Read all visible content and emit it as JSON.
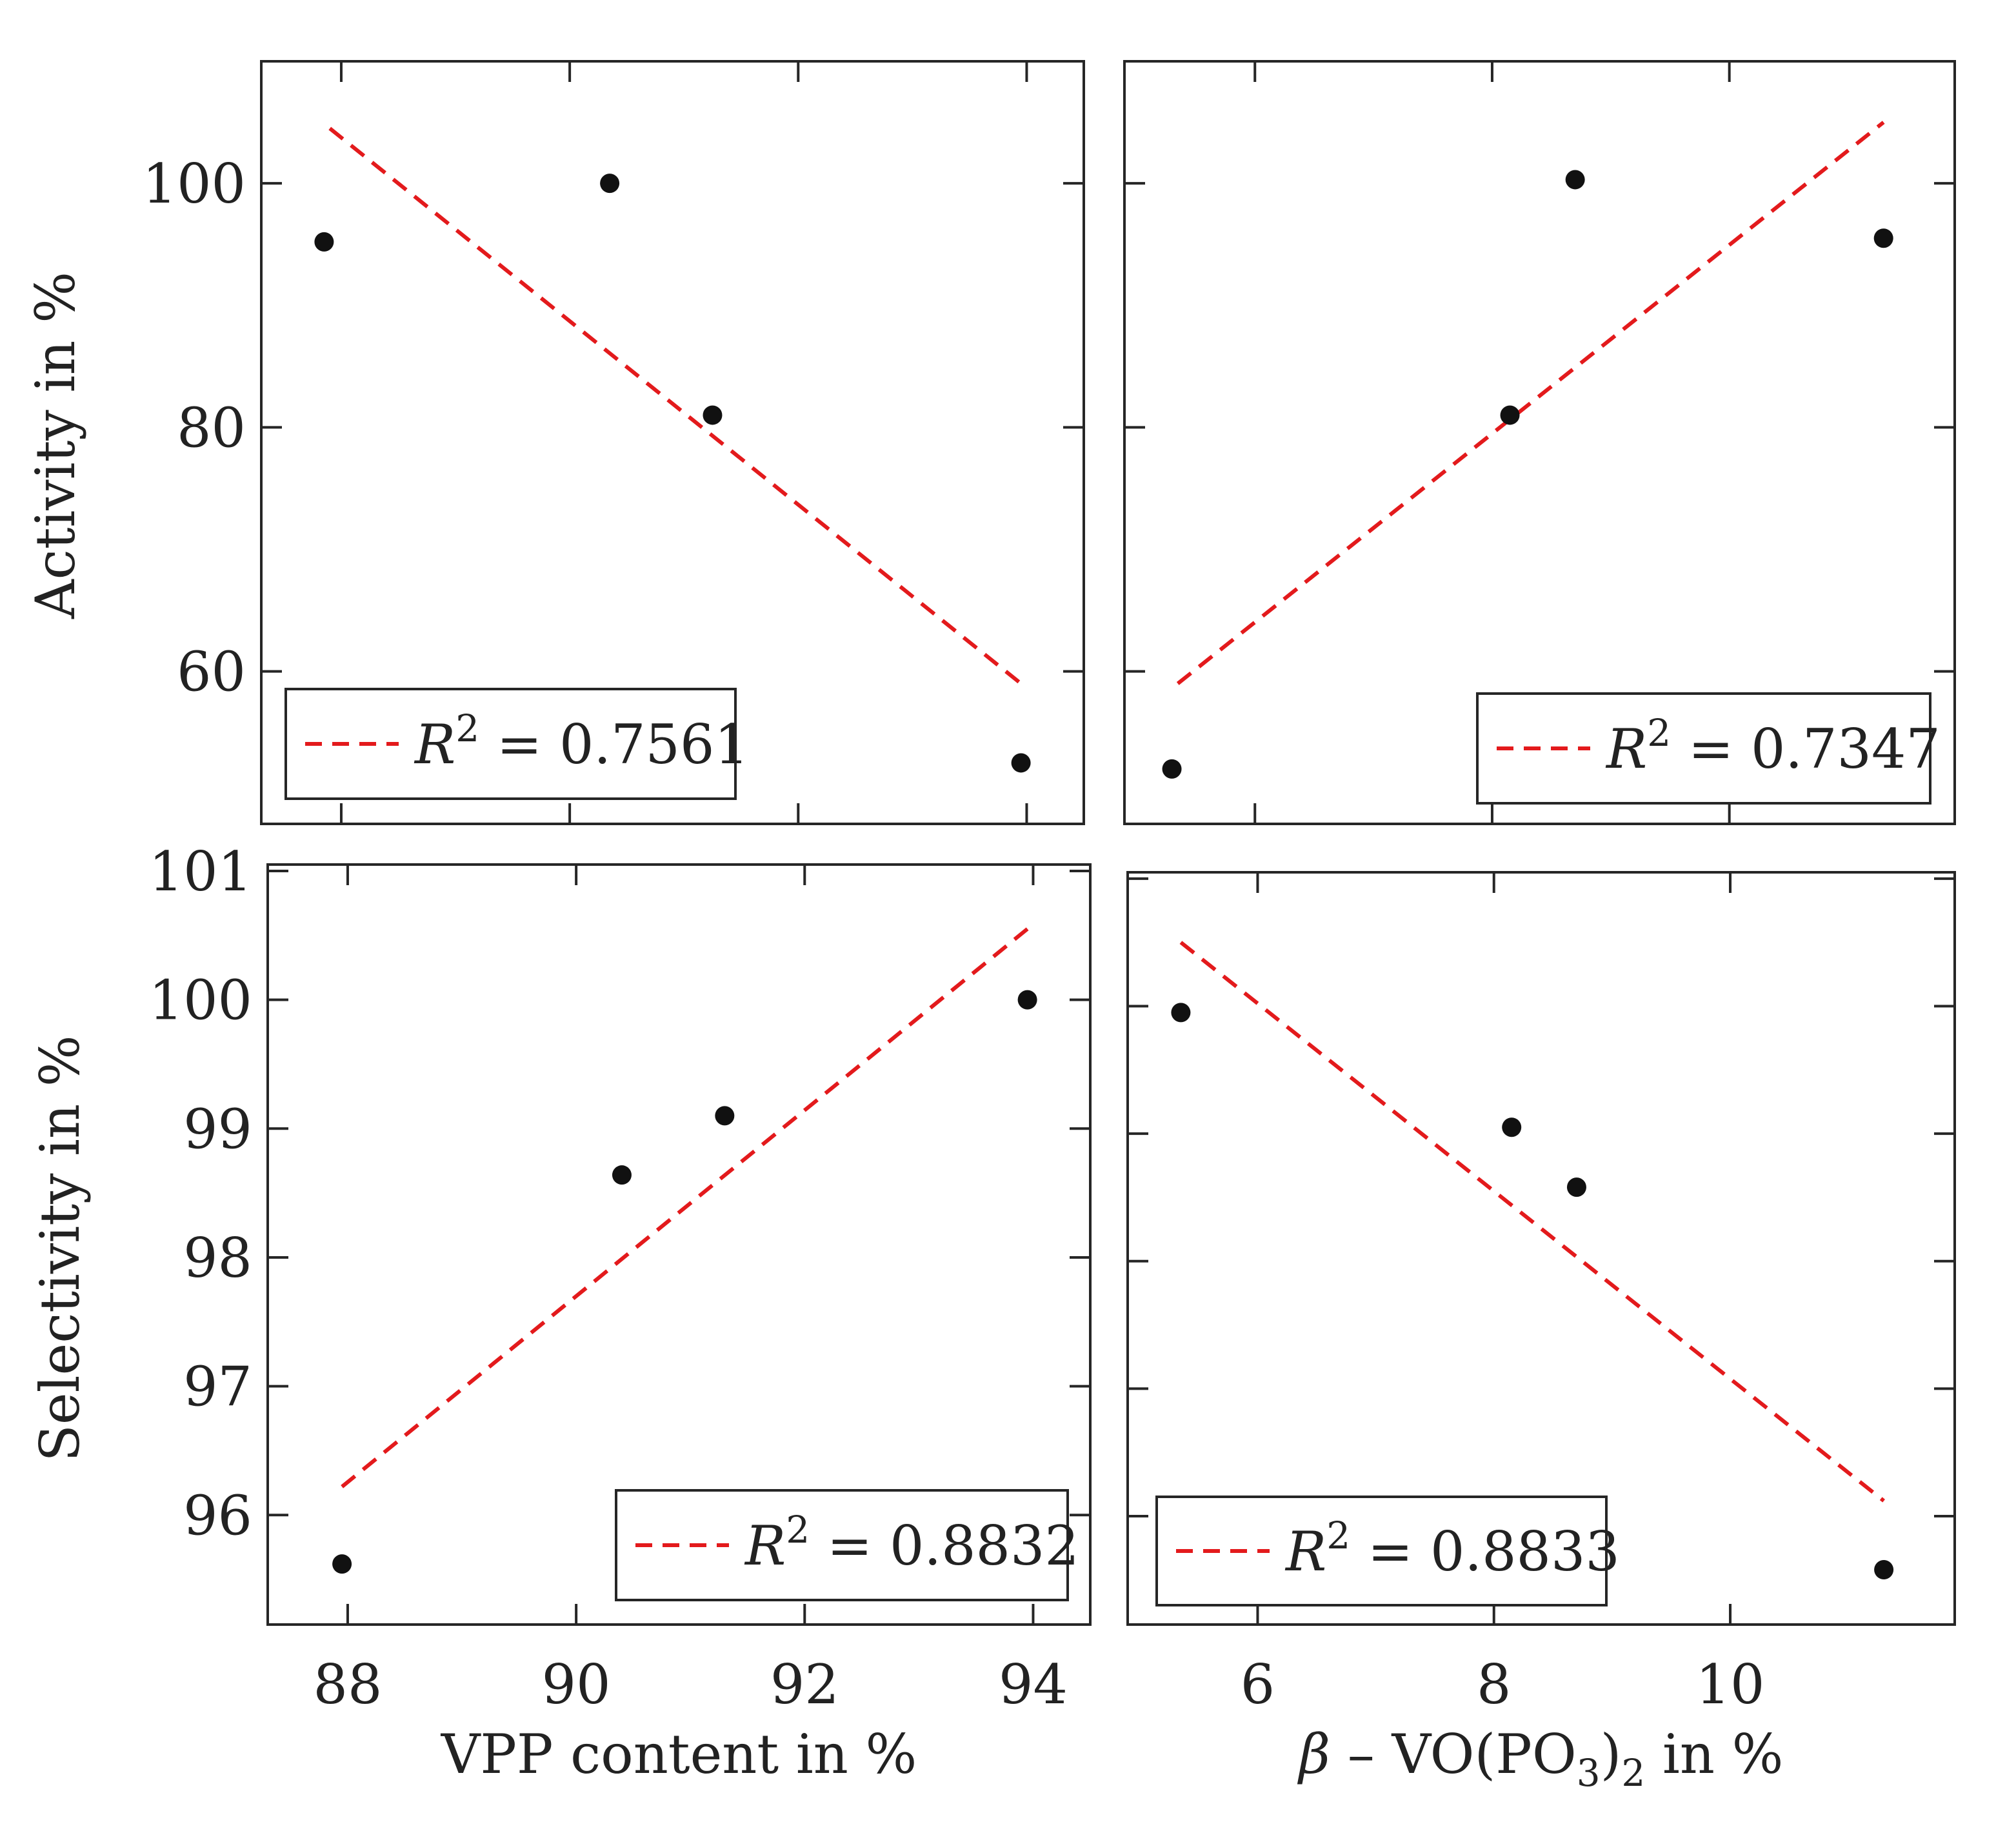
{
  "chart_data": [
    {
      "type": "scatter",
      "panel": "top-left",
      "xlabel": "",
      "ylabel": "Activity in %",
      "xlim": [
        87.3,
        94.5
      ],
      "ylim": [
        47.5,
        110
      ],
      "xticks": [
        88,
        90,
        92,
        94
      ],
      "yticks": [
        60,
        80,
        100
      ],
      "ytick_labels": [
        "60",
        "80",
        "100"
      ],
      "xtick_labels": [],
      "x": [
        87.85,
        90.35,
        91.25,
        93.95
      ],
      "y": [
        95.2,
        100.0,
        81.0,
        52.5
      ],
      "fit": {
        "x": [
          87.9,
          93.95
        ],
        "y": [
          104.5,
          59.0
        ],
        "color": "#e31a1c",
        "style": "dashed"
      },
      "legend": {
        "symbol": "R",
        "sup": "2",
        "eq": "=",
        "value": "0.7561",
        "position": "bottom-left"
      },
      "grid": false
    },
    {
      "type": "scatter",
      "panel": "top-right",
      "xlabel": "",
      "ylabel": "",
      "xlim": [
        4.9,
        11.9
      ],
      "ylim": [
        47.5,
        110
      ],
      "xticks": [
        6,
        8,
        10
      ],
      "yticks": [
        60,
        80,
        100
      ],
      "ytick_labels": [],
      "xtick_labels": [],
      "x": [
        5.3,
        8.15,
        8.7,
        11.3
      ],
      "y": [
        52.0,
        81.0,
        100.3,
        95.5
      ],
      "fit": {
        "x": [
          5.35,
          11.3
        ],
        "y": [
          59.0,
          105.0
        ],
        "color": "#e31a1c",
        "style": "dashed"
      },
      "legend": {
        "symbol": "R",
        "sup": "2",
        "eq": "=",
        "value": "0.7347",
        "position": "bottom-right"
      },
      "grid": false
    },
    {
      "type": "scatter",
      "panel": "bottom-left",
      "xlabel": "VPP content in %",
      "ylabel": "Selectivity in %",
      "xlim": [
        87.3,
        94.5
      ],
      "ylim": [
        95.15,
        101.05
      ],
      "xticks": [
        88,
        90,
        92,
        94
      ],
      "yticks": [
        96,
        97,
        98,
        99,
        100,
        101
      ],
      "ytick_labels": [
        "96",
        "97",
        "98",
        "99",
        "100",
        "101"
      ],
      "xtick_labels": [
        "88",
        "90",
        "92",
        "94"
      ],
      "x": [
        87.95,
        90.4,
        91.3,
        93.95
      ],
      "y": [
        95.62,
        98.64,
        99.1,
        100.0
      ],
      "fit": {
        "x": [
          87.95,
          93.95
        ],
        "y": [
          96.22,
          100.55
        ],
        "color": "#e31a1c",
        "style": "dashed"
      },
      "legend": {
        "symbol": "R",
        "sup": "2",
        "eq": "=",
        "value": "0.8832",
        "position": "bottom-right"
      },
      "grid": false
    },
    {
      "type": "scatter",
      "panel": "bottom-right",
      "xlabel": "β – VO(PO3)2 in %",
      "xlabel_parts": {
        "beta": "β",
        "dash": "–",
        "pre": "VO(PO",
        "sub1": "3",
        "mid": ")",
        "sub2": "2",
        "post": " in %"
      },
      "ylabel": "",
      "xlim": [
        4.9,
        11.9
      ],
      "ylim": [
        95.15,
        101.05
      ],
      "xticks": [
        6,
        8,
        10
      ],
      "yticks": [
        96,
        97,
        98,
        99,
        100,
        101
      ],
      "ytick_labels": [],
      "xtick_labels": [
        "6",
        "8",
        "10"
      ],
      "x": [
        5.35,
        8.15,
        8.7,
        11.3
      ],
      "y": [
        99.95,
        99.05,
        98.58,
        95.58
      ],
      "fit": {
        "x": [
          5.35,
          11.3
        ],
        "y": [
          100.5,
          96.12
        ],
        "color": "#e31a1c",
        "style": "dashed"
      },
      "legend": {
        "symbol": "R",
        "sup": "2",
        "eq": "=",
        "value": "0.8833",
        "position": "bottom-left"
      },
      "grid": false
    }
  ]
}
